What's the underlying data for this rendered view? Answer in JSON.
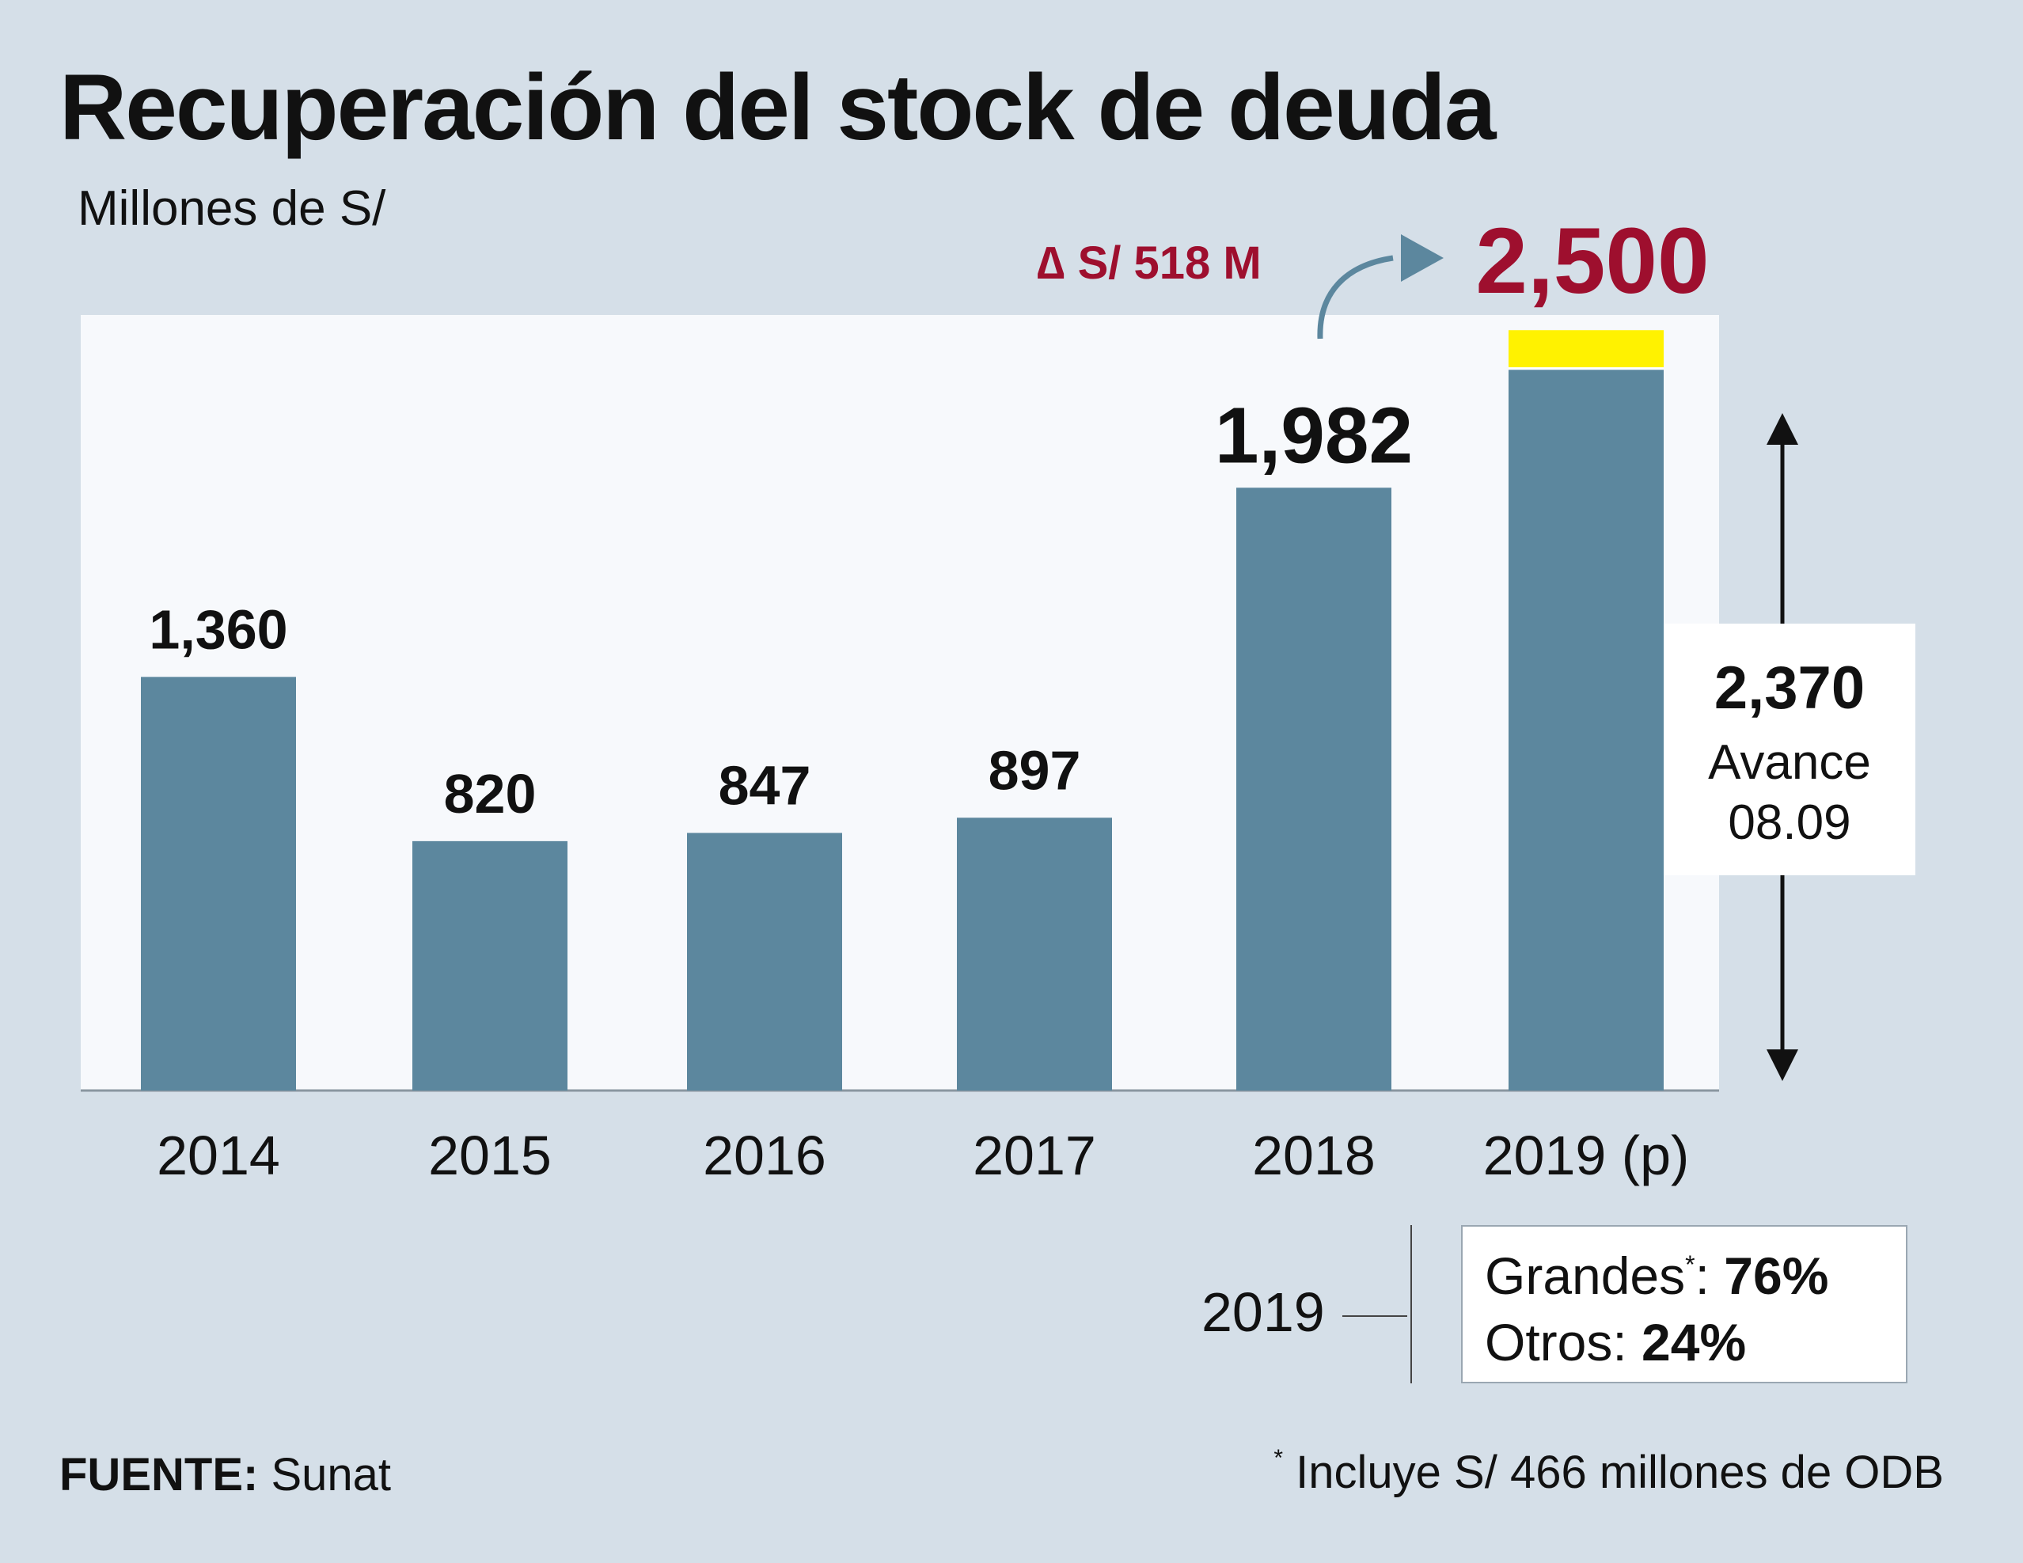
{
  "title": "Recuperación del stock de deuda",
  "subtitle": "Millones de S/",
  "colors": {
    "background": "#d5dfe8",
    "plot_background": "#f7f9fc",
    "bar": "#5c879e",
    "highlight": "#fff200",
    "accent": "#9e0f2e",
    "arrow": "#5c879e"
  },
  "chart_data": {
    "type": "bar",
    "categories": [
      "2014",
      "2015",
      "2016",
      "2017",
      "2018",
      "2019 (p)"
    ],
    "values": [
      1360,
      820,
      847,
      897,
      1982,
      2370
    ],
    "data_labels": [
      "1,360",
      "820",
      "847",
      "897",
      "1,982",
      ""
    ],
    "stacked_extra": {
      "category": "2019 (p)",
      "base": 2370,
      "value": 130,
      "total": 2500
    },
    "title": "Recuperación del stock de deuda",
    "ylabel": "Millones de S/",
    "ylim": [
      0,
      2550
    ],
    "grid": false,
    "projected_total_label": "2,500",
    "delta_label": "∆ S/ 518 M",
    "callout": {
      "value": "2,370",
      "label": "Avance",
      "date": "08.09"
    }
  },
  "split": {
    "year": "2019",
    "grandes_label": "Grandes",
    "grandes_mark": "*",
    "grandes_sep": ":",
    "grandes_value": "76%",
    "otros_label": "Otros:",
    "otros_value": "24%"
  },
  "source": {
    "label": "FUENTE:",
    "value": "Sunat"
  },
  "footnote": {
    "mark": "*",
    "text": "Incluye S/ 466 millones de ODB"
  }
}
